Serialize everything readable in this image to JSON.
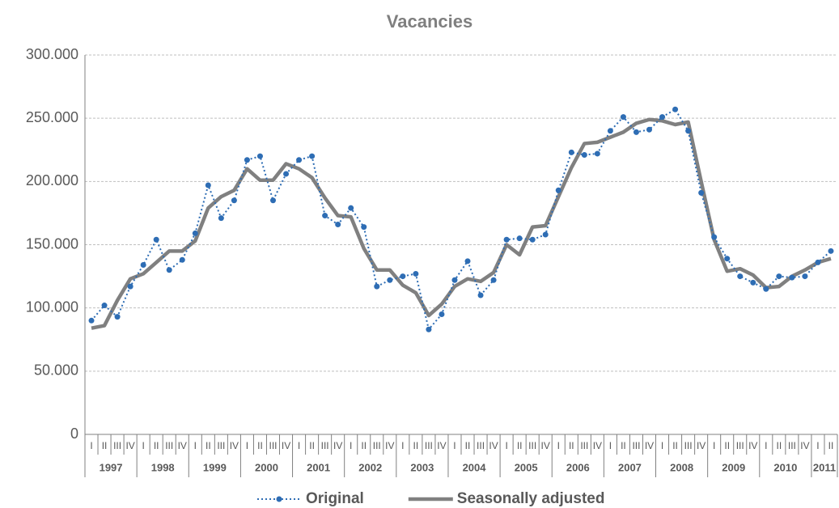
{
  "chart_data": {
    "type": "line",
    "title": "Vacancies",
    "categories": [
      "I",
      "II",
      "III",
      "IV",
      "I",
      "II",
      "III",
      "IV",
      "I",
      "II",
      "III",
      "IV",
      "I",
      "II",
      "III",
      "IV",
      "I",
      "II",
      "III",
      "IV",
      "I",
      "II",
      "III",
      "IV",
      "I",
      "II",
      "III",
      "IV",
      "I",
      "II",
      "III",
      "IV",
      "I",
      "II",
      "III",
      "IV",
      "I",
      "II",
      "III",
      "IV",
      "I",
      "II",
      "III",
      "IV",
      "I",
      "II",
      "III",
      "IV",
      "I",
      "II",
      "III",
      "IV",
      "I",
      "II",
      "III",
      "IV",
      "I",
      "II"
    ],
    "years": [
      "1997",
      "1998",
      "1999",
      "2000",
      "2001",
      "2002",
      "2003",
      "2004",
      "2005",
      "2006",
      "2007",
      "2008",
      "2009",
      "2010",
      "2011"
    ],
    "series": [
      {
        "name": "Original",
        "color": "#2e6db4",
        "style": "dotted-markers",
        "values": [
          90000,
          102000,
          93000,
          117000,
          134000,
          154000,
          130000,
          138000,
          159000,
          197000,
          171000,
          185000,
          217000,
          220000,
          185000,
          206000,
          217000,
          220000,
          173000,
          166000,
          179000,
          164000,
          117000,
          122000,
          125000,
          127000,
          83000,
          95000,
          122000,
          137000,
          110000,
          122000,
          154000,
          155000,
          154000,
          158000,
          193000,
          223000,
          221000,
          222000,
          240000,
          251000,
          239000,
          241000,
          251000,
          257000,
          240000,
          191000,
          156000,
          139000,
          125000,
          120000,
          115000,
          125000,
          124000,
          125000,
          136000,
          145000
        ]
      },
      {
        "name": "Seasonally adjusted",
        "color": "#808080",
        "style": "solid",
        "values": [
          84000,
          86000,
          106000,
          123000,
          127000,
          136000,
          145000,
          145000,
          153000,
          179000,
          188000,
          193000,
          210000,
          201000,
          201000,
          214000,
          210000,
          203000,
          187000,
          173000,
          172000,
          147000,
          130000,
          130000,
          118000,
          112000,
          94000,
          103000,
          117000,
          123000,
          121000,
          128000,
          150000,
          142000,
          164000,
          165000,
          188000,
          211000,
          230000,
          231000,
          235000,
          239000,
          246000,
          249000,
          248000,
          245000,
          247000,
          200000,
          154000,
          129000,
          131000,
          126000,
          116000,
          117000,
          125000,
          130000,
          136000,
          139000
        ]
      }
    ],
    "ylim": [
      0,
      300000
    ],
    "yticks": [
      0,
      {
        "value": 50000,
        "label": "50.000"
      },
      {
        "value": 100000,
        "label": "100.000"
      },
      {
        "value": 150000,
        "label": "150.000"
      },
      {
        "value": 200000,
        "label": "200.000"
      },
      {
        "value": 250000,
        "label": "250.000"
      },
      {
        "value": 300000,
        "label": "300.000"
      }
    ],
    "grid": true,
    "legend": "bottom"
  }
}
